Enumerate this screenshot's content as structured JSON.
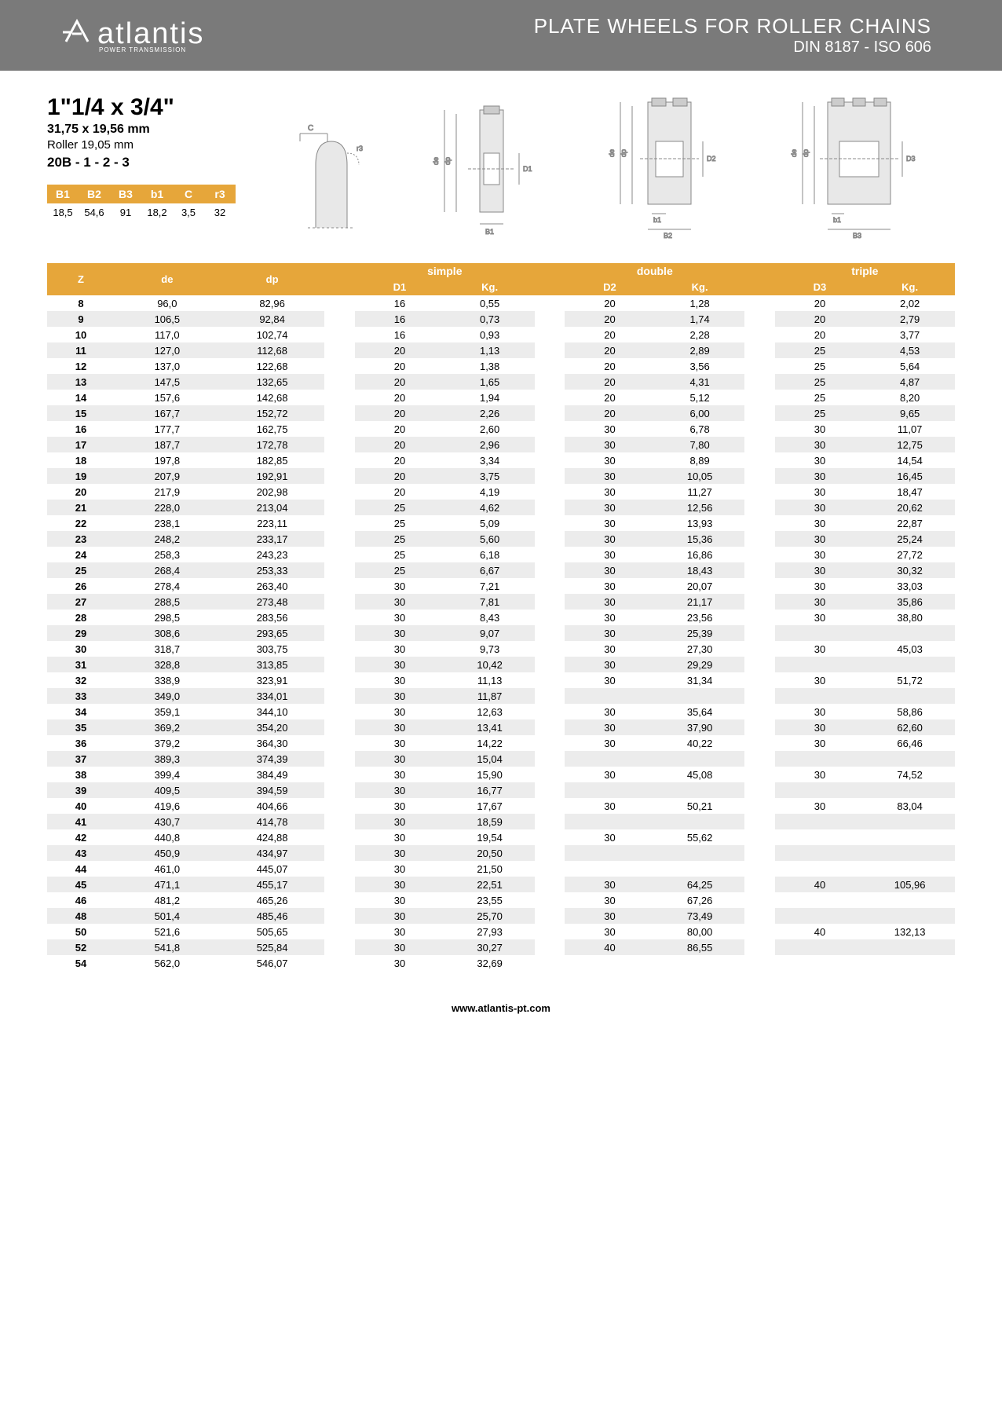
{
  "header": {
    "logo_mark": "⁠A",
    "logo_text": "atlantis",
    "logo_sub": "POWER TRANSMISSION",
    "title": "PLATE WHEELS FOR ROLLER CHAINS",
    "subtitle": "DIN 8187 - ISO 606"
  },
  "spec": {
    "title": "1\"1/4 x 3/4\"",
    "dim": "31,75 x 19,56 mm",
    "roller": "Roller 19,05 mm",
    "code": "20B - 1 - 2 - 3"
  },
  "mini_table": {
    "headers": [
      "B1",
      "B2",
      "B3",
      "b1",
      "C",
      "r3"
    ],
    "values": [
      "18,5",
      "54,6",
      "91",
      "18,2",
      "3,5",
      "32"
    ]
  },
  "main_headers": {
    "z": "Z",
    "de": "de",
    "dp": "dp",
    "simple": "simple",
    "double": "double",
    "triple": "triple",
    "d1": "D1",
    "d2": "D2",
    "d3": "D3",
    "kg": "Kg."
  },
  "diagram_labels": {
    "c": "C",
    "r3": "r3",
    "de": "de",
    "dp": "dp",
    "d1": "D1",
    "d2": "D2",
    "d3": "D3",
    "b1u": "B1",
    "b1l": "b1",
    "b2": "B2",
    "b3": "B3"
  },
  "rows": [
    {
      "z": "8",
      "de": "96,0",
      "dp": "82,96",
      "d1": "16",
      "kg1": "0,55",
      "d2": "20",
      "kg2": "1,28",
      "d3": "20",
      "kg3": "2,02"
    },
    {
      "z": "9",
      "de": "106,5",
      "dp": "92,84",
      "d1": "16",
      "kg1": "0,73",
      "d2": "20",
      "kg2": "1,74",
      "d3": "20",
      "kg3": "2,79"
    },
    {
      "z": "10",
      "de": "117,0",
      "dp": "102,74",
      "d1": "16",
      "kg1": "0,93",
      "d2": "20",
      "kg2": "2,28",
      "d3": "20",
      "kg3": "3,77"
    },
    {
      "z": "11",
      "de": "127,0",
      "dp": "112,68",
      "d1": "20",
      "kg1": "1,13",
      "d2": "20",
      "kg2": "2,89",
      "d3": "25",
      "kg3": "4,53"
    },
    {
      "z": "12",
      "de": "137,0",
      "dp": "122,68",
      "d1": "20",
      "kg1": "1,38",
      "d2": "20",
      "kg2": "3,56",
      "d3": "25",
      "kg3": "5,64"
    },
    {
      "z": "13",
      "de": "147,5",
      "dp": "132,65",
      "d1": "20",
      "kg1": "1,65",
      "d2": "20",
      "kg2": "4,31",
      "d3": "25",
      "kg3": "4,87"
    },
    {
      "z": "14",
      "de": "157,6",
      "dp": "142,68",
      "d1": "20",
      "kg1": "1,94",
      "d2": "20",
      "kg2": "5,12",
      "d3": "25",
      "kg3": "8,20"
    },
    {
      "z": "15",
      "de": "167,7",
      "dp": "152,72",
      "d1": "20",
      "kg1": "2,26",
      "d2": "20",
      "kg2": "6,00",
      "d3": "25",
      "kg3": "9,65"
    },
    {
      "z": "16",
      "de": "177,7",
      "dp": "162,75",
      "d1": "20",
      "kg1": "2,60",
      "d2": "30",
      "kg2": "6,78",
      "d3": "30",
      "kg3": "11,07"
    },
    {
      "z": "17",
      "de": "187,7",
      "dp": "172,78",
      "d1": "20",
      "kg1": "2,96",
      "d2": "30",
      "kg2": "7,80",
      "d3": "30",
      "kg3": "12,75"
    },
    {
      "z": "18",
      "de": "197,8",
      "dp": "182,85",
      "d1": "20",
      "kg1": "3,34",
      "d2": "30",
      "kg2": "8,89",
      "d3": "30",
      "kg3": "14,54"
    },
    {
      "z": "19",
      "de": "207,9",
      "dp": "192,91",
      "d1": "20",
      "kg1": "3,75",
      "d2": "30",
      "kg2": "10,05",
      "d3": "30",
      "kg3": "16,45"
    },
    {
      "z": "20",
      "de": "217,9",
      "dp": "202,98",
      "d1": "20",
      "kg1": "4,19",
      "d2": "30",
      "kg2": "11,27",
      "d3": "30",
      "kg3": "18,47"
    },
    {
      "z": "21",
      "de": "228,0",
      "dp": "213,04",
      "d1": "25",
      "kg1": "4,62",
      "d2": "30",
      "kg2": "12,56",
      "d3": "30",
      "kg3": "20,62"
    },
    {
      "z": "22",
      "de": "238,1",
      "dp": "223,11",
      "d1": "25",
      "kg1": "5,09",
      "d2": "30",
      "kg2": "13,93",
      "d3": "30",
      "kg3": "22,87"
    },
    {
      "z": "23",
      "de": "248,2",
      "dp": "233,17",
      "d1": "25",
      "kg1": "5,60",
      "d2": "30",
      "kg2": "15,36",
      "d3": "30",
      "kg3": "25,24"
    },
    {
      "z": "24",
      "de": "258,3",
      "dp": "243,23",
      "d1": "25",
      "kg1": "6,18",
      "d2": "30",
      "kg2": "16,86",
      "d3": "30",
      "kg3": "27,72"
    },
    {
      "z": "25",
      "de": "268,4",
      "dp": "253,33",
      "d1": "25",
      "kg1": "6,67",
      "d2": "30",
      "kg2": "18,43",
      "d3": "30",
      "kg3": "30,32"
    },
    {
      "z": "26",
      "de": "278,4",
      "dp": "263,40",
      "d1": "30",
      "kg1": "7,21",
      "d2": "30",
      "kg2": "20,07",
      "d3": "30",
      "kg3": "33,03"
    },
    {
      "z": "27",
      "de": "288,5",
      "dp": "273,48",
      "d1": "30",
      "kg1": "7,81",
      "d2": "30",
      "kg2": "21,17",
      "d3": "30",
      "kg3": "35,86"
    },
    {
      "z": "28",
      "de": "298,5",
      "dp": "283,56",
      "d1": "30",
      "kg1": "8,43",
      "d2": "30",
      "kg2": "23,56",
      "d3": "30",
      "kg3": "38,80"
    },
    {
      "z": "29",
      "de": "308,6",
      "dp": "293,65",
      "d1": "30",
      "kg1": "9,07",
      "d2": "30",
      "kg2": "25,39",
      "d3": "",
      "kg3": ""
    },
    {
      "z": "30",
      "de": "318,7",
      "dp": "303,75",
      "d1": "30",
      "kg1": "9,73",
      "d2": "30",
      "kg2": "27,30",
      "d3": "30",
      "kg3": "45,03"
    },
    {
      "z": "31",
      "de": "328,8",
      "dp": "313,85",
      "d1": "30",
      "kg1": "10,42",
      "d2": "30",
      "kg2": "29,29",
      "d3": "",
      "kg3": ""
    },
    {
      "z": "32",
      "de": "338,9",
      "dp": "323,91",
      "d1": "30",
      "kg1": "11,13",
      "d2": "30",
      "kg2": "31,34",
      "d3": "30",
      "kg3": "51,72"
    },
    {
      "z": "33",
      "de": "349,0",
      "dp": "334,01",
      "d1": "30",
      "kg1": "11,87",
      "d2": "",
      "kg2": "",
      "d3": "",
      "kg3": ""
    },
    {
      "z": "34",
      "de": "359,1",
      "dp": "344,10",
      "d1": "30",
      "kg1": "12,63",
      "d2": "30",
      "kg2": "35,64",
      "d3": "30",
      "kg3": "58,86"
    },
    {
      "z": "35",
      "de": "369,2",
      "dp": "354,20",
      "d1": "30",
      "kg1": "13,41",
      "d2": "30",
      "kg2": "37,90",
      "d3": "30",
      "kg3": "62,60"
    },
    {
      "z": "36",
      "de": "379,2",
      "dp": "364,30",
      "d1": "30",
      "kg1": "14,22",
      "d2": "30",
      "kg2": "40,22",
      "d3": "30",
      "kg3": "66,46"
    },
    {
      "z": "37",
      "de": "389,3",
      "dp": "374,39",
      "d1": "30",
      "kg1": "15,04",
      "d2": "",
      "kg2": "",
      "d3": "",
      "kg3": ""
    },
    {
      "z": "38",
      "de": "399,4",
      "dp": "384,49",
      "d1": "30",
      "kg1": "15,90",
      "d2": "30",
      "kg2": "45,08",
      "d3": "30",
      "kg3": "74,52"
    },
    {
      "z": "39",
      "de": "409,5",
      "dp": "394,59",
      "d1": "30",
      "kg1": "16,77",
      "d2": "",
      "kg2": "",
      "d3": "",
      "kg3": ""
    },
    {
      "z": "40",
      "de": "419,6",
      "dp": "404,66",
      "d1": "30",
      "kg1": "17,67",
      "d2": "30",
      "kg2": "50,21",
      "d3": "30",
      "kg3": "83,04"
    },
    {
      "z": "41",
      "de": "430,7",
      "dp": "414,78",
      "d1": "30",
      "kg1": "18,59",
      "d2": "",
      "kg2": "",
      "d3": "",
      "kg3": ""
    },
    {
      "z": "42",
      "de": "440,8",
      "dp": "424,88",
      "d1": "30",
      "kg1": "19,54",
      "d2": "30",
      "kg2": "55,62",
      "d3": "",
      "kg3": ""
    },
    {
      "z": "43",
      "de": "450,9",
      "dp": "434,97",
      "d1": "30",
      "kg1": "20,50",
      "d2": "",
      "kg2": "",
      "d3": "",
      "kg3": ""
    },
    {
      "z": "44",
      "de": "461,0",
      "dp": "445,07",
      "d1": "30",
      "kg1": "21,50",
      "d2": "",
      "kg2": "",
      "d3": "",
      "kg3": ""
    },
    {
      "z": "45",
      "de": "471,1",
      "dp": "455,17",
      "d1": "30",
      "kg1": "22,51",
      "d2": "30",
      "kg2": "64,25",
      "d3": "40",
      "kg3": "105,96"
    },
    {
      "z": "46",
      "de": "481,2",
      "dp": "465,26",
      "d1": "30",
      "kg1": "23,55",
      "d2": "30",
      "kg2": "67,26",
      "d3": "",
      "kg3": ""
    },
    {
      "z": "48",
      "de": "501,4",
      "dp": "485,46",
      "d1": "30",
      "kg1": "25,70",
      "d2": "30",
      "kg2": "73,49",
      "d3": "",
      "kg3": ""
    },
    {
      "z": "50",
      "de": "521,6",
      "dp": "505,65",
      "d1": "30",
      "kg1": "27,93",
      "d2": "30",
      "kg2": "80,00",
      "d3": "40",
      "kg3": "132,13"
    },
    {
      "z": "52",
      "de": "541,8",
      "dp": "525,84",
      "d1": "30",
      "kg1": "30,27",
      "d2": "40",
      "kg2": "86,55",
      "d3": "",
      "kg3": ""
    },
    {
      "z": "54",
      "de": "562,0",
      "dp": "546,07",
      "d1": "30",
      "kg1": "32,69",
      "d2": "",
      "kg2": "",
      "d3": "",
      "kg3": ""
    }
  ],
  "footer": "www.atlantis-pt.com",
  "colors": {
    "header_bg": "#7a7a7a",
    "accent": "#e6a63a",
    "row_odd": "#ececec"
  }
}
